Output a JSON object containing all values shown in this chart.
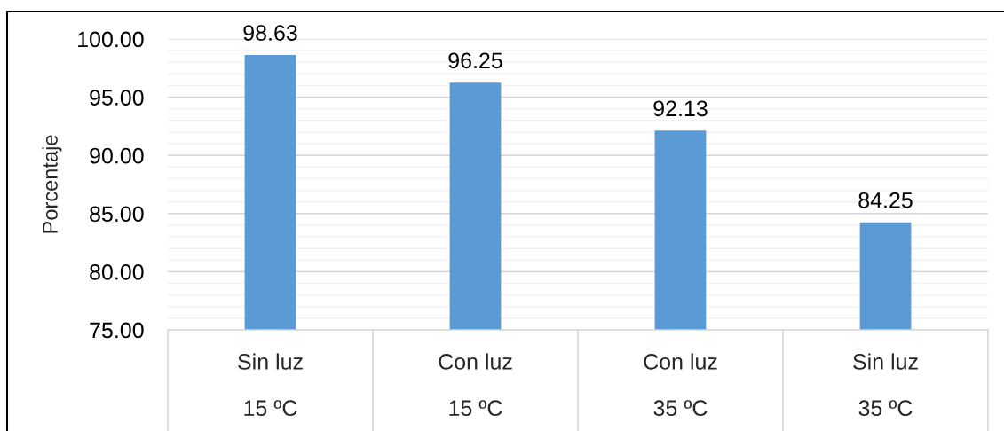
{
  "chart_data": {
    "type": "bar",
    "ylabel": "Porcentaje",
    "categories": [
      "Sin luz\n15 ºC",
      "Con luz\n15 ºC",
      "Con luz\n35 ºC",
      "Sin luz\n35 ºC"
    ],
    "values": [
      98.63,
      96.25,
      92.13,
      84.25
    ],
    "color": "#5b9bd5",
    "data_labels": true,
    "ylim": [
      75,
      100
    ],
    "yticks": [
      {
        "value": 75,
        "label": "75.00"
      },
      {
        "value": 76,
        "label": null
      },
      {
        "value": 77,
        "label": null
      },
      {
        "value": 78,
        "label": null
      },
      {
        "value": 79,
        "label": null
      },
      {
        "value": 80,
        "label": "80.00"
      },
      {
        "value": 81,
        "label": null
      },
      {
        "value": 82,
        "label": null
      },
      {
        "value": 83,
        "label": null
      },
      {
        "value": 84,
        "label": null
      },
      {
        "value": 85,
        "label": "85.00"
      },
      {
        "value": 86,
        "label": null
      },
      {
        "value": 87,
        "label": null
      },
      {
        "value": 88,
        "label": null
      },
      {
        "value": 89,
        "label": null
      },
      {
        "value": 90,
        "label": "90.00"
      },
      {
        "value": 91,
        "label": null
      },
      {
        "value": 92,
        "label": null
      },
      {
        "value": 93,
        "label": null
      },
      {
        "value": 94,
        "label": null
      },
      {
        "value": 95,
        "label": "95.00"
      },
      {
        "value": 96,
        "label": null
      },
      {
        "value": 97,
        "label": null
      },
      {
        "value": 98,
        "label": null
      },
      {
        "value": 99,
        "label": null
      },
      {
        "value": 100,
        "label": "100.00"
      }
    ],
    "grid": "y"
  }
}
